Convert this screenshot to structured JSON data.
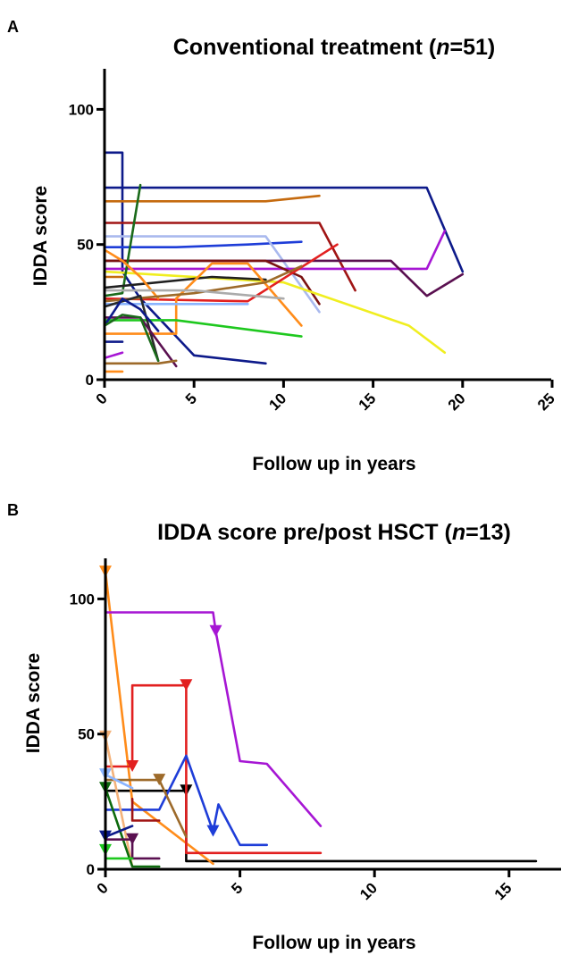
{
  "chart_data": [
    {
      "type": "line",
      "panel_label": "A",
      "title_parts": [
        "Conventional treatment (",
        "n",
        "=51)"
      ],
      "xlabel": "Follow up in years",
      "ylabel": "IDDA score",
      "xlim": [
        0,
        25
      ],
      "ylim": [
        0,
        115
      ],
      "xticks": [
        0,
        5,
        10,
        15,
        20,
        25
      ],
      "yticks": [
        0,
        50,
        100
      ],
      "markers": false,
      "series": [
        {
          "color": "#0d1a8a",
          "points": [
            [
              0,
              71
            ],
            [
              18,
              71
            ],
            [
              20,
              40
            ]
          ]
        },
        {
          "color": "#0d1a8a",
          "points": [
            [
              0,
              84
            ],
            [
              1,
              84
            ],
            [
              1,
              40
            ],
            [
              2,
              30
            ],
            [
              5,
              9
            ],
            [
              9,
              6
            ]
          ]
        },
        {
          "color": "#c56a0e",
          "points": [
            [
              0,
              66
            ],
            [
              9,
              66
            ],
            [
              12,
              68
            ]
          ]
        },
        {
          "color": "#a01414",
          "points": [
            [
              0,
              58
            ],
            [
              12,
              58
            ],
            [
              14,
              33
            ]
          ]
        },
        {
          "color": "#1e3dd8",
          "points": [
            [
              0,
              49
            ],
            [
              4,
              49
            ],
            [
              8,
              50
            ],
            [
              11,
              51
            ]
          ]
        },
        {
          "color": "#a9b9ee",
          "points": [
            [
              0,
              53
            ],
            [
              9,
              53
            ],
            [
              12,
              25
            ]
          ]
        },
        {
          "color": "#a616d4",
          "points": [
            [
              0,
              41
            ],
            [
              18,
              41
            ],
            [
              19,
              55
            ]
          ]
        },
        {
          "color": "#5a1050",
          "points": [
            [
              0,
              44
            ],
            [
              16,
              44
            ],
            [
              18,
              31
            ],
            [
              20,
              39
            ]
          ]
        },
        {
          "color": "#7a1212",
          "points": [
            [
              0,
              44
            ],
            [
              9,
              44
            ],
            [
              11,
              38
            ],
            [
              12,
              28
            ]
          ]
        },
        {
          "color": "#f0ee20",
          "points": [
            [
              0,
              40
            ],
            [
              10,
              36
            ],
            [
              17,
              20
            ],
            [
              19,
              10
            ]
          ]
        },
        {
          "color": "#e22020",
          "points": [
            [
              0,
              30
            ],
            [
              8,
              29
            ],
            [
              13,
              50
            ]
          ]
        },
        {
          "color": "#1a6a1a",
          "points": [
            [
              0,
              31
            ],
            [
              1,
              32
            ],
            [
              2,
              72
            ]
          ]
        },
        {
          "color": "#202020",
          "points": [
            [
              0,
              34
            ],
            [
              6,
              38
            ],
            [
              9,
              37
            ]
          ]
        },
        {
          "color": "#ff8c1a",
          "points": [
            [
              0,
              17
            ],
            [
              4,
              17
            ],
            [
              4,
              30
            ],
            [
              6,
              43
            ],
            [
              8,
              43
            ],
            [
              11,
              20
            ]
          ]
        },
        {
          "color": "#ff8c1a",
          "points": [
            [
              0,
              48
            ],
            [
              1,
              44
            ],
            [
              2,
              38
            ],
            [
              3,
              30
            ]
          ]
        },
        {
          "color": "#9d6a2a",
          "points": [
            [
              0,
              29
            ],
            [
              5,
              32
            ],
            [
              9,
              36
            ],
            [
              11,
              42
            ]
          ]
        },
        {
          "color": "#ababab",
          "points": [
            [
              0,
              33
            ],
            [
              5,
              33
            ],
            [
              10,
              30
            ]
          ]
        },
        {
          "color": "#1ec81e",
          "points": [
            [
              0,
              22
            ],
            [
              4,
              22
            ],
            [
              11,
              16
            ]
          ]
        },
        {
          "color": "#8ab4ff",
          "points": [
            [
              0,
              28
            ],
            [
              8,
              28
            ]
          ]
        },
        {
          "color": "#2a2a2a",
          "points": [
            [
              0,
              27
            ],
            [
              2,
              31
            ],
            [
              3,
              7
            ]
          ]
        },
        {
          "color": "#5a1050",
          "points": [
            [
              0,
              23
            ],
            [
              2,
              23
            ],
            [
              3,
              14
            ],
            [
              4,
              5
            ]
          ]
        },
        {
          "color": "#0d1a8a",
          "points": [
            [
              0,
              20
            ],
            [
              1,
              30
            ],
            [
              2,
              26
            ],
            [
              3,
              18
            ]
          ]
        },
        {
          "color": "#0d1a8a",
          "points": [
            [
              0,
              14
            ],
            [
              1,
              14
            ]
          ]
        },
        {
          "color": "#1a6a1a",
          "points": [
            [
              0,
              20
            ],
            [
              1,
              24
            ],
            [
              2,
              23
            ],
            [
              3,
              7
            ]
          ]
        },
        {
          "color": "#ff8c1a",
          "points": [
            [
              0,
              3
            ],
            [
              1,
              3
            ]
          ]
        },
        {
          "color": "#9d6a2a",
          "points": [
            [
              0,
              6
            ],
            [
              3,
              6
            ],
            [
              4,
              7
            ]
          ]
        },
        {
          "color": "#a616d4",
          "points": [
            [
              0,
              8
            ],
            [
              1,
              10
            ]
          ]
        },
        {
          "color": "#c56a0e",
          "points": [
            [
              0,
              38
            ],
            [
              1,
              38
            ]
          ]
        }
      ]
    },
    {
      "type": "line",
      "panel_label": "B",
      "title_parts": [
        "IDDA score pre/post HSCT (",
        "n",
        "=13)"
      ],
      "xlabel": "Follow up in years",
      "ylabel": "IDDA score",
      "xlim": [
        0,
        17
      ],
      "ylim": [
        0,
        115
      ],
      "xticks": [
        0,
        5,
        10,
        15
      ],
      "yticks": [
        0,
        50,
        100
      ],
      "markers": true,
      "series": [
        {
          "color": "#000000",
          "points": [
            [
              0,
              29
            ],
            [
              3,
              29
            ],
            [
              3,
              3
            ],
            [
              16,
              3
            ]
          ],
          "markers": [
            [
              3,
              29
            ]
          ]
        },
        {
          "color": "#ff8c1a",
          "points": [
            [
              0,
              110
            ],
            [
              1,
              25
            ],
            [
              4,
              2
            ]
          ],
          "markers": [
            [
              0,
              110
            ]
          ]
        },
        {
          "color": "#a616d4",
          "points": [
            [
              0,
              95
            ],
            [
              4,
              95
            ],
            [
              4.1,
              88
            ],
            [
              5,
              40
            ],
            [
              6,
              39
            ],
            [
              8,
              16
            ]
          ],
          "markers": [
            [
              4.1,
              88
            ]
          ]
        },
        {
          "color": "#e22020",
          "points": [
            [
              0,
              38
            ],
            [
              1,
              38
            ],
            [
              1,
              68
            ],
            [
              3,
              68
            ],
            [
              3,
              6
            ],
            [
              8,
              6
            ]
          ],
          "markers": [
            [
              1,
              38
            ],
            [
              3,
              68
            ]
          ]
        },
        {
          "color": "#1e3dd8",
          "points": [
            [
              0,
              22
            ],
            [
              2,
              22
            ],
            [
              3,
              42
            ],
            [
              4,
              14
            ],
            [
              4.2,
              24
            ],
            [
              5,
              9
            ],
            [
              6,
              9
            ]
          ],
          "markers": [
            [
              4,
              14
            ]
          ]
        },
        {
          "color": "#9d6a2a",
          "points": [
            [
              0,
              33
            ],
            [
              2,
              33
            ],
            [
              3,
              12
            ]
          ],
          "markers": [
            [
              2,
              33
            ]
          ]
        },
        {
          "color": "#f4b27a",
          "points": [
            [
              0,
              49
            ],
            [
              1,
              1
            ]
          ],
          "markers": [
            [
              0,
              49
            ]
          ]
        },
        {
          "color": "#8ab4ff",
          "points": [
            [
              0,
              35
            ],
            [
              1,
              30
            ]
          ],
          "markers": [
            [
              0,
              35
            ]
          ]
        },
        {
          "color": "#0d6a0d",
          "points": [
            [
              0,
              30
            ],
            [
              1,
              1
            ],
            [
              2,
              1
            ]
          ],
          "markers": [
            [
              0,
              30
            ]
          ]
        },
        {
          "color": "#a01414",
          "points": [
            [
              1,
              26
            ],
            [
              1,
              18
            ],
            [
              2,
              18
            ]
          ],
          "markers": []
        },
        {
          "color": "#0d1a8a",
          "points": [
            [
              0,
              12
            ],
            [
              1,
              16
            ]
          ],
          "markers": [
            [
              0,
              12
            ]
          ]
        },
        {
          "color": "#5a1050",
          "points": [
            [
              0,
              11
            ],
            [
              1,
              11
            ],
            [
              1,
              4
            ],
            [
              2,
              4
            ]
          ],
          "markers": [
            [
              1,
              11
            ]
          ]
        },
        {
          "color": "#1ec81e",
          "points": [
            [
              0,
              7
            ],
            [
              0,
              4
            ],
            [
              1,
              4
            ]
          ],
          "markers": [
            [
              0,
              7
            ]
          ]
        }
      ]
    }
  ]
}
